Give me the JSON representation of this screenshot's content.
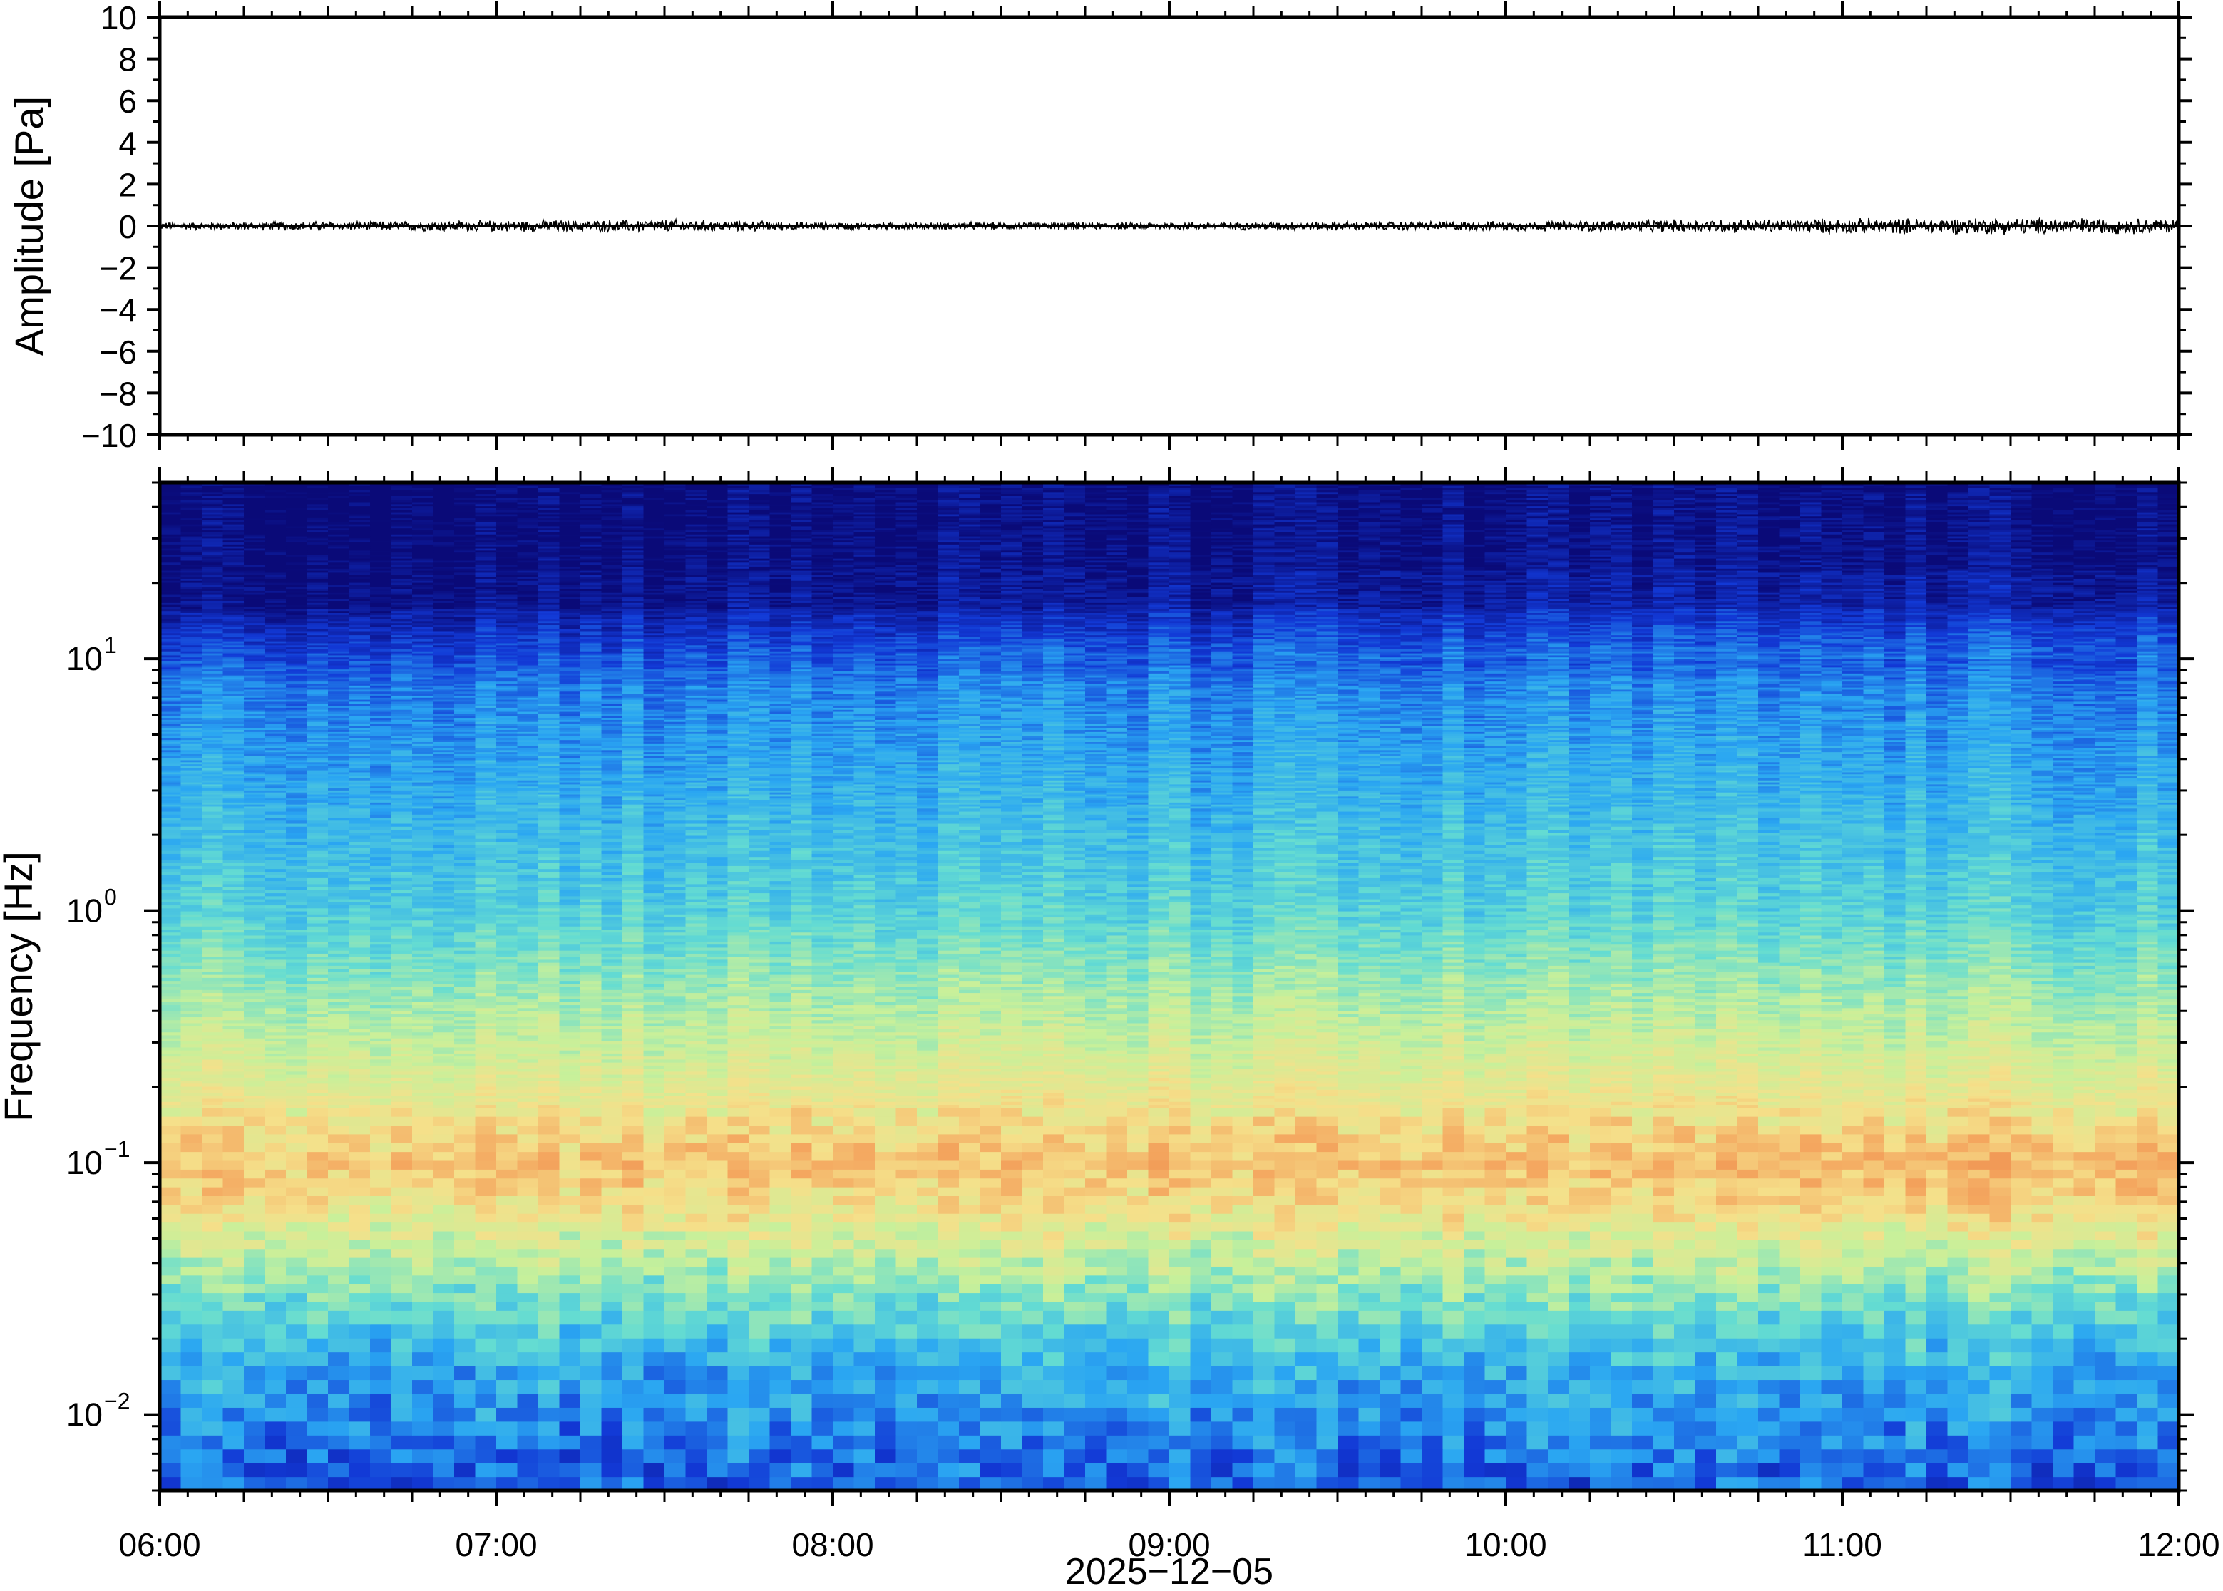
{
  "chart_data": [
    {
      "type": "line",
      "ylabel": "Amplitude [Pa]",
      "ylim": [
        -10,
        10
      ],
      "y_ticks": [
        10,
        8,
        6,
        4,
        2,
        0,
        -2,
        -4,
        -6,
        -8,
        -10
      ],
      "y_tick_labels": [
        "10",
        "8",
        "6",
        "4",
        "2",
        "0",
        "−2",
        "−4",
        "−6",
        "−8",
        "−10"
      ],
      "xlim": [
        "2025-12-05 06:00",
        "2025-12-05 12:00"
      ],
      "grid": false,
      "trace_color": "#000000",
      "envelope": {
        "x": [
          "06:00",
          "06:30",
          "07:00",
          "07:30",
          "08:00",
          "08:30",
          "09:00",
          "09:30",
          "10:00",
          "10:30",
          "11:00",
          "11:30",
          "12:00"
        ],
        "peak_amplitude": [
          0.2,
          0.25,
          0.3,
          0.35,
          0.2,
          0.2,
          0.2,
          0.25,
          0.25,
          0.35,
          0.4,
          0.45,
          0.4
        ]
      }
    },
    {
      "type": "heatmap",
      "ylabel": "Frequency [Hz]",
      "yscale": "log",
      "ylim": [
        0.005,
        50
      ],
      "y_ticks": [
        0.01,
        0.1,
        1,
        10
      ],
      "y_tick_labels": [
        {
          "base": "10",
          "exp": "−2"
        },
        {
          "base": "10",
          "exp": "−1"
        },
        {
          "base": "10",
          "exp": "0"
        },
        {
          "base": "10",
          "exp": "1"
        }
      ],
      "x_ticks": [
        "06:00",
        "07:00",
        "08:00",
        "09:00",
        "10:00",
        "11:00",
        "12:00"
      ],
      "xlabel": "2025−12−05",
      "colormap": "jet (spectral power, dB)",
      "colors": [
        "#0a0a78",
        "#1239d6",
        "#2aa6f2",
        "#64dcd2",
        "#c8f09a",
        "#f5e08a",
        "#f4a860",
        "#ee8a4c"
      ],
      "description_of_power": {
        "high_freq_above_15Hz": "lowest (dark navy)",
        "around_10Hz": "low (blue)",
        "around_1Hz": "medium-low (cyan/green)",
        "around_0.1Hz": "highest (yellow/orange), strongest near 11:00-12:00",
        "below_0.02Hz": "low (light blue)"
      }
    }
  ]
}
